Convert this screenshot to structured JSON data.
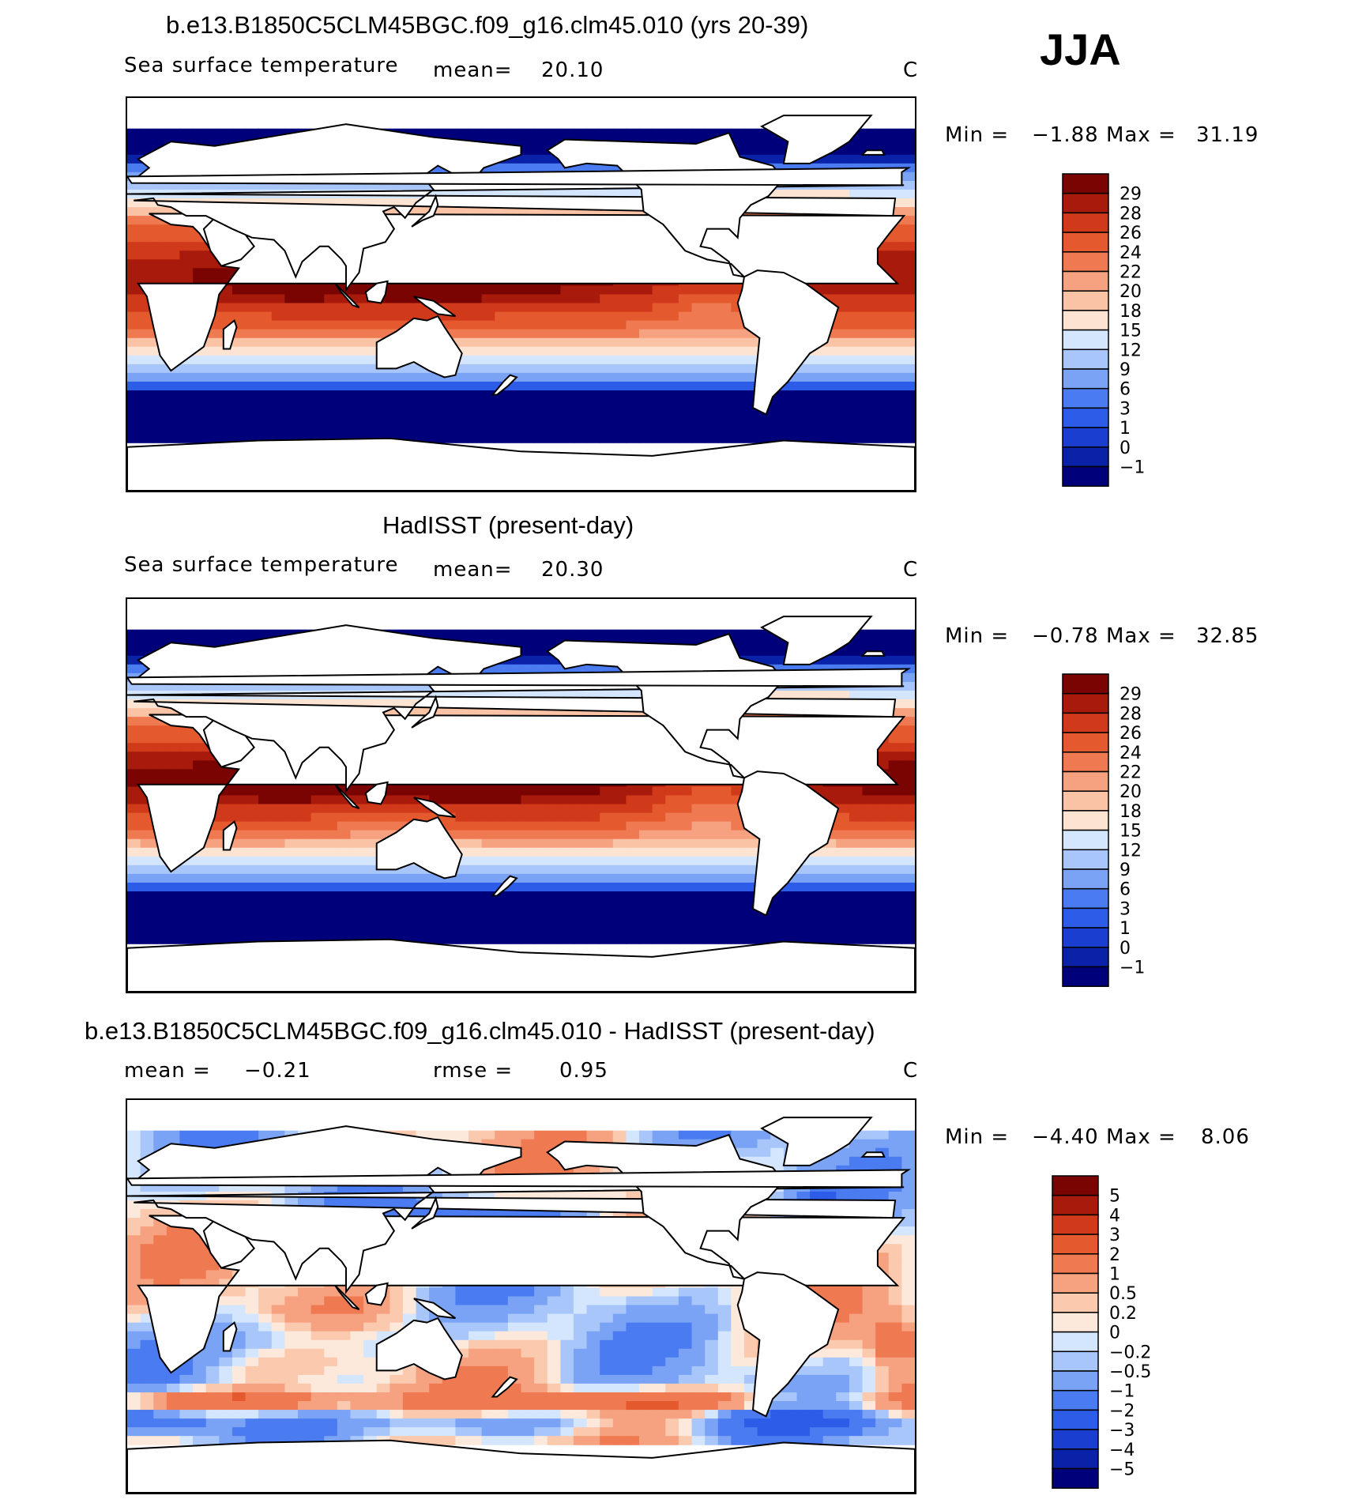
{
  "season": "JJA",
  "panels": [
    {
      "title": "b.e13.B1850C5CLM45BGC.f09_g16.clm45.010 (yrs 20-39)",
      "left_label": "Sea surface temperature",
      "stat1": "mean=",
      "stat1_value": "20.10",
      "stat2": "",
      "stat2_value": "",
      "units": "C",
      "min_label": "Min =",
      "min_value": "−1.88",
      "max_label": "Max =",
      "max_value": "31.19",
      "type": "sst",
      "colorbar_labels": [
        "29",
        "28",
        "26",
        "24",
        "22",
        "20",
        "18",
        "15",
        "12",
        "9",
        "6",
        "3",
        "1",
        "0",
        "−1"
      ]
    },
    {
      "title": "HadISST (present-day)",
      "left_label": "Sea surface temperature",
      "stat1": "mean=",
      "stat1_value": "20.30",
      "stat2": "",
      "stat2_value": "",
      "units": "C",
      "min_label": "Min =",
      "min_value": "−0.78",
      "max_label": "Max =",
      "max_value": "32.85",
      "type": "sst_obs",
      "colorbar_labels": [
        "29",
        "28",
        "26",
        "24",
        "22",
        "20",
        "18",
        "15",
        "12",
        "9",
        "6",
        "3",
        "1",
        "0",
        "−1"
      ]
    },
    {
      "title": "b.e13.B1850C5CLM45BGC.f09_g16.clm45.010 - HadISST (present-day)",
      "left_label": "",
      "stat1": "mean =",
      "stat1_value": "−0.21",
      "stat2": "rmse =",
      "stat2_value": "0.95",
      "units": "C",
      "min_label": "Min =",
      "min_value": "−4.40",
      "max_label": "Max =",
      "max_value": "8.06",
      "type": "diff",
      "colorbar_labels": [
        "5",
        "4",
        "3",
        "2",
        "1",
        "0.5",
        "0.2",
        "0",
        "−0.2",
        "−0.5",
        "−1",
        "−2",
        "−3",
        "−4",
        "−5"
      ]
    }
  ],
  "colors": {
    "sst": [
      "#00007a",
      "#0a22a8",
      "#1a3fd0",
      "#2d5ce8",
      "#4a7bf0",
      "#7aa3f5",
      "#a8c6fa",
      "#d4e6fd",
      "#fde4d2",
      "#fbc3a6",
      "#f6a17f",
      "#ef7a52",
      "#e45a2e",
      "#d0391a",
      "#a81a0b",
      "#7a0402"
    ],
    "diff": [
      "#00007a",
      "#0a22a8",
      "#1a3fd0",
      "#2d5ce8",
      "#4a7bf0",
      "#7aa3f5",
      "#a8c6fa",
      "#d4e6fd",
      "#fde9dc",
      "#fbc9ae",
      "#f6a17f",
      "#ef7a52",
      "#e45a2e",
      "#d0391a",
      "#a81a0b",
      "#7a0402"
    ]
  }
}
